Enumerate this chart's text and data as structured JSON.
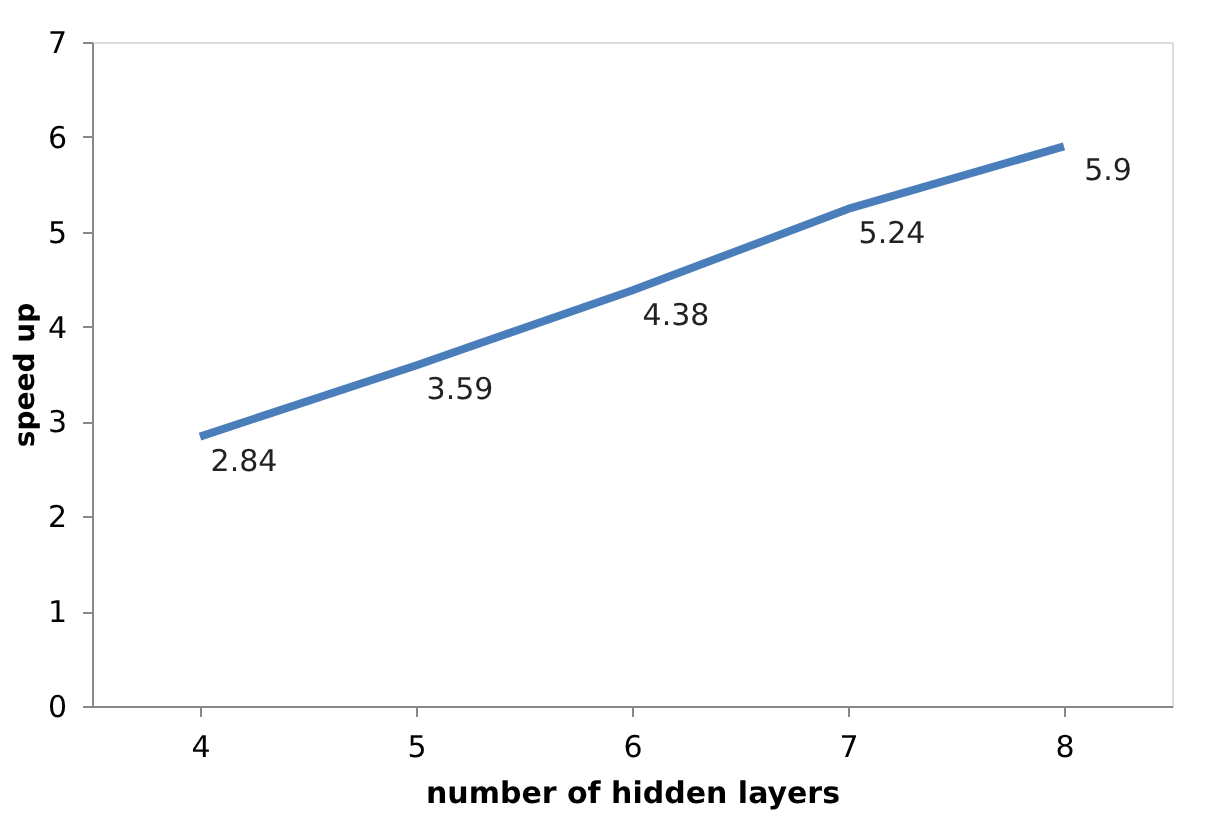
{
  "chart_data": {
    "type": "line",
    "xlabel": "number of  hidden layers",
    "ylabel": "speed up",
    "categories": [
      "4",
      "5",
      "6",
      "7",
      "8"
    ],
    "series": [
      {
        "color": "#4a7ebb",
        "values": [
          2.84,
          3.59,
          4.38,
          5.24,
          5.9
        ]
      }
    ],
    "ylim": [
      0,
      7
    ],
    "yticks": [
      0,
      1,
      2,
      3,
      4,
      5,
      6,
      7
    ],
    "grid": false,
    "marker": "none",
    "line_style": "solid",
    "data_labels": true
  }
}
